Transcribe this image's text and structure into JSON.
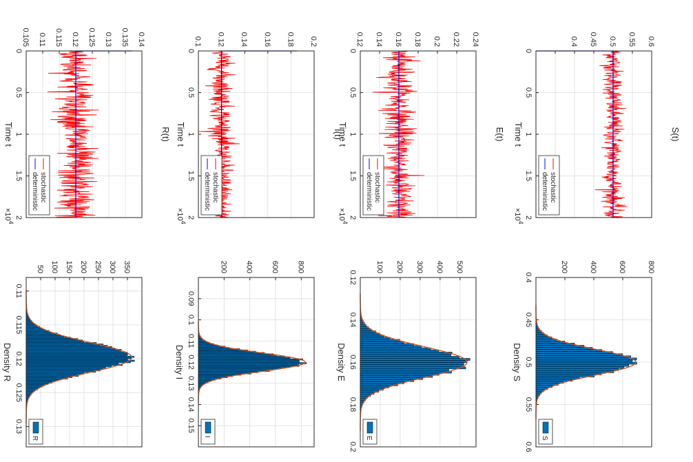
{
  "figure": {
    "orientation": "rotated 90 degrees clockwise",
    "rows_description": "Top row (left side of image): time series; bottom row (right side): density histograms"
  },
  "colors": {
    "stochastic": "#ff0000",
    "deterministic": "#0000ff",
    "bar_fill": "#0072bd",
    "bar_edge": "#000000",
    "fit": "#d95319"
  },
  "chart_data": [
    {
      "id": "ts_S",
      "type": "line",
      "title": "S(t)",
      "xlabel": "Time t",
      "ylabel": "",
      "xlim": [
        0,
        20000
      ],
      "ylim": [
        0.3,
        0.6
      ],
      "xticks": [
        0,
        5000,
        10000,
        15000,
        20000
      ],
      "xtick_labels": [
        "0",
        "0.5",
        "1",
        "1.5",
        "2"
      ],
      "yticks": [
        0.35,
        0.4,
        0.45,
        0.5,
        0.55,
        0.6
      ],
      "ytick_labels": [
        "",
        "0.4",
        "0.45",
        "0.5",
        "0.55",
        "0.6"
      ],
      "x_multiplier": "×10",
      "x_multiplier_exp": "4",
      "deterministic_level": 0.5,
      "noise_amplitude": 0.03,
      "initial_spike": 0.3,
      "series": [
        {
          "name": "stochastic"
        },
        {
          "name": "deterministic"
        }
      ],
      "legend": [
        "stochastic",
        "deterministic"
      ],
      "legend_loc": "bottom-right"
    },
    {
      "id": "ts_E",
      "type": "line",
      "title": "E(t)",
      "xlabel": "Time t",
      "ylabel": "",
      "xlim": [
        0,
        20000
      ],
      "ylim": [
        0.12,
        0.24
      ],
      "xticks": [
        0,
        5000,
        10000,
        15000,
        20000
      ],
      "xtick_labels": [
        "0",
        "0.5",
        "1",
        "1.5",
        "2"
      ],
      "yticks": [
        0.12,
        0.14,
        0.16,
        0.18,
        0.2,
        0.22,
        0.24
      ],
      "ytick_labels": [
        "0.12",
        "0.14",
        "0.16",
        "0.18",
        "0.2",
        "0.22",
        "0.24"
      ],
      "x_multiplier": "×10",
      "x_multiplier_exp": "4",
      "deterministic_level": 0.16,
      "noise_amplitude": 0.018,
      "initial_spike": null,
      "series": [
        {
          "name": "stochastic"
        },
        {
          "name": "deterministic"
        }
      ],
      "legend": [
        "stochastic",
        "deterministic"
      ],
      "legend_loc": "bottom-right"
    },
    {
      "id": "ts_I",
      "type": "line",
      "title": "I(t)",
      "xlabel": "Time t",
      "ylabel": "",
      "xlim": [
        0,
        20000
      ],
      "ylim": [
        0.1,
        0.2
      ],
      "xticks": [
        0,
        5000,
        10000,
        15000,
        20000
      ],
      "xtick_labels": [
        "0",
        "0.5",
        "1",
        "1.5",
        "2"
      ],
      "yticks": [
        0.1,
        0.12,
        0.14,
        0.16,
        0.18,
        0.2
      ],
      "ytick_labels": [
        "0.1",
        "0.12",
        "0.14",
        "0.16",
        "0.18",
        "0.2"
      ],
      "x_multiplier": "×10",
      "x_multiplier_exp": "4",
      "deterministic_level": 0.12,
      "noise_amplitude": 0.011,
      "initial_spike": 0.185,
      "series": [
        {
          "name": "stochastic"
        },
        {
          "name": "deterministic"
        }
      ],
      "legend": [
        "stochastic",
        "deterministic"
      ],
      "legend_loc": "bottom-right"
    },
    {
      "id": "ts_R",
      "type": "line",
      "title": "R(t)",
      "xlabel": "Time t",
      "ylabel": "",
      "xlim": [
        0,
        20000
      ],
      "ylim": [
        0.105,
        0.14
      ],
      "xticks": [
        0,
        5000,
        10000,
        15000,
        20000
      ],
      "xtick_labels": [
        "0",
        "0.5",
        "1",
        "1.5",
        "2"
      ],
      "yticks": [
        0.105,
        0.11,
        0.115,
        0.12,
        0.125,
        0.13,
        0.135,
        0.14
      ],
      "ytick_labels": [
        "0.105",
        "0.11",
        "0.115",
        "0.12",
        "0.125",
        "0.13",
        "0.135",
        "0.14"
      ],
      "x_multiplier": "×10",
      "x_multiplier_exp": "4",
      "deterministic_level": 0.12,
      "noise_amplitude": 0.0065,
      "initial_spike": 0.137,
      "series": [
        {
          "name": "stochastic"
        },
        {
          "name": "deterministic"
        }
      ],
      "legend": [
        "stochastic",
        "deterministic"
      ],
      "legend_loc": "bottom-right"
    },
    {
      "id": "hist_S",
      "type": "bar",
      "title": "",
      "xlabel": "Density S",
      "ylabel": "",
      "xlim": [
        0.4,
        0.6
      ],
      "ylim": [
        0,
        800
      ],
      "xticks": [
        0.4,
        0.45,
        0.5,
        0.55,
        0.6
      ],
      "xtick_labels": [
        "0.4",
        "0.45",
        "0.5",
        "0.55",
        "0.6"
      ],
      "yticks": [
        200,
        400,
        600,
        800
      ],
      "ytick_labels": [
        "200",
        "400",
        "600",
        "800"
      ],
      "mean": 0.5,
      "std": 0.015,
      "peak": 690,
      "bin_width": 0.0025,
      "legend": [
        "S"
      ],
      "legend_loc": "bottom-right"
    },
    {
      "id": "hist_E",
      "type": "bar",
      "title": "",
      "xlabel": "Density E",
      "ylabel": "",
      "xlim": [
        0.12,
        0.2
      ],
      "ylim": [
        0,
        580
      ],
      "xticks": [
        0.12,
        0.14,
        0.16,
        0.18,
        0.2
      ],
      "xtick_labels": [
        "0.12",
        "0.14",
        "0.16",
        "0.18",
        "0.2"
      ],
      "yticks": [
        100,
        200,
        300,
        400,
        500
      ],
      "ytick_labels": [
        "100",
        "200",
        "300",
        "400",
        "500"
      ],
      "mean": 0.16,
      "std": 0.0072,
      "peak": 535,
      "bin_width": 0.001,
      "legend": [
        "E"
      ],
      "legend_loc": "bottom-right"
    },
    {
      "id": "hist_I",
      "type": "bar",
      "title": "",
      "xlabel": "Density I",
      "ylabel": "",
      "xlim": [
        0.08,
        0.16
      ],
      "ylim": [
        0,
        900
      ],
      "xticks": [
        0.09,
        0.1,
        0.11,
        0.12,
        0.13,
        0.14,
        0.15
      ],
      "xtick_labels": [
        "0.09",
        "0.1",
        "0.11",
        "0.12",
        "0.13",
        "0.14",
        "0.15"
      ],
      "yticks": [
        200,
        400,
        600,
        800
      ],
      "ytick_labels": [
        "200",
        "400",
        "600",
        "800"
      ],
      "mean": 0.12,
      "std": 0.0043,
      "peak": 830,
      "bin_width": 0.0006,
      "legend": [
        "I"
      ],
      "legend_loc": "bottom-right"
    },
    {
      "id": "hist_R",
      "type": "bar",
      "title": "",
      "xlabel": "Density R",
      "ylabel": "",
      "xlim": [
        0.108,
        0.133
      ],
      "ylim": [
        0,
        400
      ],
      "xticks": [
        0.11,
        0.115,
        0.12,
        0.125,
        0.13
      ],
      "xtick_labels": [
        "0.11",
        "0.115",
        "0.12",
        "0.125",
        "0.13"
      ],
      "yticks": [
        50,
        100,
        150,
        200,
        250,
        300,
        350
      ],
      "ytick_labels": [
        "50",
        "100",
        "150",
        "200",
        "250",
        "300",
        "350"
      ],
      "mean": 0.1198,
      "std": 0.0022,
      "peak": 365,
      "bin_width": 0.0002,
      "legend": [
        "R"
      ],
      "legend_loc": "bottom-right"
    }
  ]
}
